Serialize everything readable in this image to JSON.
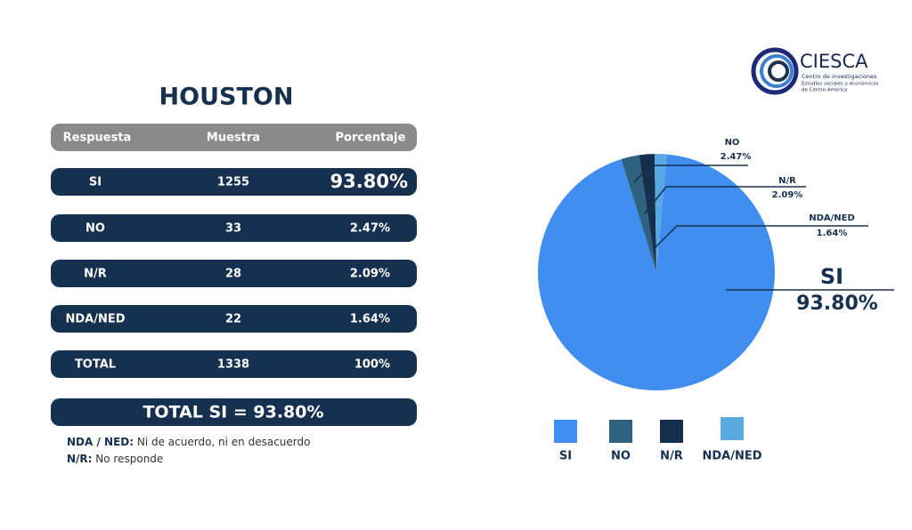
{
  "title": "HOUSTON",
  "logo": {
    "name": "CIESCA",
    "line1": "Centro de investigaciones",
    "line2": "Estudios sociales y económicos",
    "line3": "de Centro América"
  },
  "table": {
    "header": [
      "Respuesta",
      "Muestra",
      "Porcentaje"
    ],
    "rows": [
      [
        "SI",
        1255,
        "93.80%"
      ],
      [
        "NO",
        33,
        "2.47%"
      ],
      [
        "N/R",
        28,
        "2.09%"
      ],
      [
        "NDA/NED",
        22,
        "1.64%"
      ],
      [
        "TOTAL",
        1338,
        "100%"
      ]
    ],
    "total": "TOTAL SI = 93.80%"
  },
  "notes": [
    {
      "term": "NDA / NED:",
      "text": "Ni de acuerdo, ni en desacuerdo"
    },
    {
      "term": "N/R:",
      "text": "No responde"
    }
  ],
  "chart_data": {
    "type": "pie",
    "categories": [
      "SI",
      "NO",
      "N/R",
      "NDA/NED"
    ],
    "values": [
      93.8,
      2.47,
      2.09,
      1.64
    ],
    "value_labels": [
      "93.80%",
      "2.47%",
      "2.09%",
      "1.64%"
    ],
    "colors": [
      "#3f8ef0",
      "#2f6180",
      "#15304f",
      "#58a8e2"
    ]
  }
}
